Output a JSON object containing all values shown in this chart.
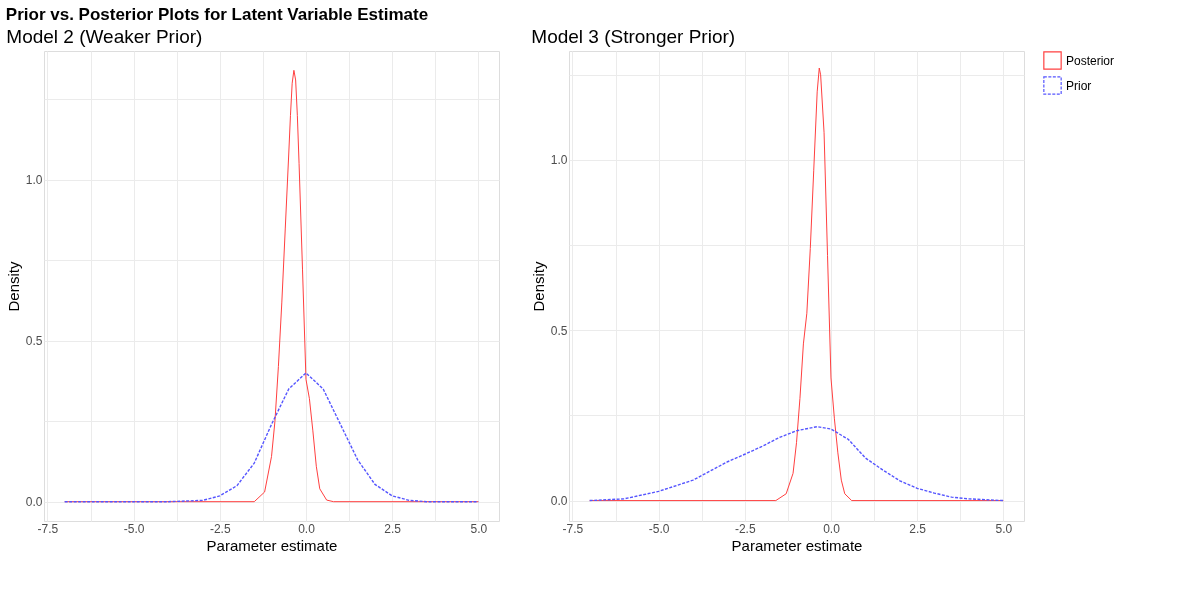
{
  "chart_data": [
    {
      "type": "line",
      "title": "Model 2 (Weaker Prior)",
      "xlabel": "Parameter estimate",
      "ylabel": "Density",
      "annotations": [
        "Prior vs. Posterior Plots for Latent Variable Estimate"
      ],
      "xlim": [
        -7.6,
        5.6
      ],
      "ylim": [
        -0.06,
        1.4
      ],
      "xticks": [
        {
          "value": -7.5,
          "label": "-7.5"
        },
        {
          "value": -6.25,
          "label": null
        },
        {
          "value": -5,
          "label": "-5.0"
        },
        {
          "value": -3.75,
          "label": null
        },
        {
          "value": -2.5,
          "label": "-2.5"
        },
        {
          "value": -1.25,
          "label": null
        },
        {
          "value": 0,
          "label": "0.0"
        },
        {
          "value": 1.25,
          "label": null
        },
        {
          "value": 2.5,
          "label": "2.5"
        },
        {
          "value": 3.75,
          "label": null
        },
        {
          "value": 5,
          "label": "5.0"
        }
      ],
      "yticks": [
        {
          "value": 0,
          "label": "0.0"
        },
        {
          "value": 0.25,
          "label": null
        },
        {
          "value": 0.5,
          "label": "0.5"
        },
        {
          "value": 0.75,
          "label": null
        },
        {
          "value": 1,
          "label": "1.0"
        },
        {
          "value": 1.25,
          "label": null
        }
      ],
      "grid": true,
      "legend": "right",
      "series": [
        {
          "name": "Posterior",
          "color": "#ff4040",
          "line_style": "solid",
          "x": [
            -7,
            -1.5,
            -1.2,
            -1.0,
            -0.9,
            -0.8,
            -0.7,
            -0.6,
            -0.5,
            -0.45,
            -0.4,
            -0.35,
            -0.3,
            -0.25,
            -0.2,
            -0.1,
            0,
            0.1,
            0.2,
            0.3,
            0.4,
            0.6,
            0.8,
            5
          ],
          "values": [
            0,
            0,
            0.03,
            0.14,
            0.25,
            0.42,
            0.62,
            0.85,
            1.08,
            1.2,
            1.3,
            1.34,
            1.31,
            1.2,
            1.05,
            0.72,
            0.38,
            0.32,
            0.22,
            0.11,
            0.04,
            0.005,
            0,
            0
          ]
        },
        {
          "name": "Prior",
          "color": "#5555ff",
          "line_style": "dashed",
          "x": [
            -7,
            -4,
            -3,
            -2.5,
            -2,
            -1.5,
            -1,
            -0.5,
            0,
            0.5,
            1,
            1.5,
            2,
            2.5,
            3,
            3.5,
            5
          ],
          "values": [
            0,
            0,
            0.004,
            0.018,
            0.05,
            0.12,
            0.24,
            0.35,
            0.4,
            0.35,
            0.24,
            0.13,
            0.054,
            0.018,
            0.004,
            0,
            0
          ]
        }
      ]
    },
    {
      "type": "line",
      "title": "Model 3 (Stronger Prior)",
      "xlabel": "Parameter estimate",
      "ylabel": "Density",
      "xlim": [
        -7.6,
        5.6
      ],
      "ylim": [
        -0.06,
        1.32
      ],
      "xticks": [
        {
          "value": -7.5,
          "label": "-7.5"
        },
        {
          "value": -6.25,
          "label": null
        },
        {
          "value": -5,
          "label": "-5.0"
        },
        {
          "value": -3.75,
          "label": null
        },
        {
          "value": -2.5,
          "label": "-2.5"
        },
        {
          "value": -1.25,
          "label": null
        },
        {
          "value": 0,
          "label": "0.0"
        },
        {
          "value": 1.25,
          "label": null
        },
        {
          "value": 2.5,
          "label": "2.5"
        },
        {
          "value": 3.75,
          "label": null
        },
        {
          "value": 5,
          "label": "5.0"
        }
      ],
      "yticks": [
        {
          "value": 0,
          "label": "0.0"
        },
        {
          "value": 0.25,
          "label": null
        },
        {
          "value": 0.5,
          "label": "0.5"
        },
        {
          "value": 0.75,
          "label": null
        },
        {
          "value": 1,
          "label": "1.0"
        },
        {
          "value": 1.25,
          "label": null
        }
      ],
      "grid": true,
      "legend": "right",
      "series": [
        {
          "name": "Posterior",
          "color": "#ff4040",
          "line_style": "solid",
          "x": [
            -7,
            -1.6,
            -1.3,
            -1.1,
            -1.0,
            -0.9,
            -0.8,
            -0.7,
            -0.6,
            -0.5,
            -0.4,
            -0.34,
            -0.3,
            -0.2,
            -0.1,
            0,
            0.1,
            0.2,
            0.3,
            0.4,
            0.6,
            5
          ],
          "values": [
            0,
            0,
            0.02,
            0.08,
            0.17,
            0.3,
            0.46,
            0.55,
            0.74,
            0.97,
            1.2,
            1.27,
            1.25,
            1.08,
            0.72,
            0.36,
            0.24,
            0.14,
            0.06,
            0.02,
            0,
            0
          ]
        },
        {
          "name": "Prior",
          "color": "#5555ff",
          "line_style": "dashed",
          "x": [
            -7,
            -6,
            -5,
            -4,
            -3,
            -2.5,
            -2,
            -1.5,
            -1,
            -0.4,
            0,
            0.5,
            1,
            1.5,
            2,
            2.5,
            3,
            3.5,
            4,
            5
          ],
          "values": [
            0,
            0.005,
            0.027,
            0.06,
            0.114,
            0.136,
            0.159,
            0.185,
            0.205,
            0.217,
            0.21,
            0.18,
            0.125,
            0.09,
            0.058,
            0.036,
            0.022,
            0.01,
            0.005,
            0
          ]
        }
      ]
    }
  ]
}
